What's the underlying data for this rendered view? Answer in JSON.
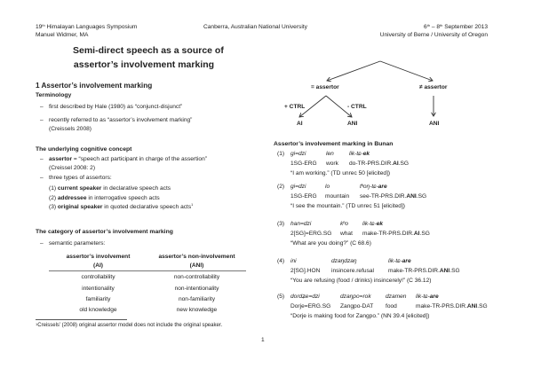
{
  "header": {
    "event_ordinal": "19",
    "event_ordinal_sup": "th",
    "event_name": "Himalayan Languages Symposium",
    "author": "Manuel Widmer, MA",
    "location": "Canberra, Australian National University",
    "date_start": "6",
    "date_start_sup": "th",
    "date_sep": " – ",
    "date_end": "8",
    "date_end_sup": "th",
    "date_rest": " September 2013",
    "affiliation": "University of Berne / University of Oregon"
  },
  "title": {
    "line1": "Semi-direct speech as a source of",
    "line2": "assertor’s involvement marking"
  },
  "section1": {
    "heading": "1 Assertor’s involvement marking",
    "terminology": {
      "heading": "Terminology",
      "b1": "first described by Hale (1980) as “conjunct-disjunct”",
      "b2": "recently referred to as “assertor’s involvement marking”",
      "b2_cont": "(Creissels 2008)"
    },
    "concept": {
      "heading": "The underlying cognitive concept",
      "b1_bold": "assertor",
      "b1_rest": " = “speech act participant in charge of the assertion”",
      "b1_cont": "(Creissel 2008: 2)",
      "b2": "three types of assertors:",
      "types": [
        {
          "num": "(1) ",
          "bold": "current speaker",
          "rest": " in declarative speech acts",
          "sup": ""
        },
        {
          "num": "(2) ",
          "bold": "addressee",
          "rest": " in interrogative speech acts",
          "sup": ""
        },
        {
          "num": "(3) ",
          "bold": "original speaker",
          "rest": " in quoted declarative speech acts",
          "sup": "1"
        }
      ]
    },
    "category": {
      "heading": "The category of assertor’s involvement marking",
      "b1": "semantic parameters:",
      "table": {
        "headers": [
          [
            "assertor’s involvement",
            "(AI)"
          ],
          [
            "assertor’s non-involvement",
            "(ANI)"
          ]
        ],
        "rows": [
          [
            "controllability",
            "non-controllability"
          ],
          [
            "intentionality",
            "non-intentionality"
          ],
          [
            "familiarity",
            "non-familiarity"
          ],
          [
            "old knowledge",
            "new knowledge"
          ]
        ]
      }
    }
  },
  "footnote": {
    "num": "1",
    "text": "Creissels’ (2008) original assertor model does not include the original speaker."
  },
  "page_number": "1",
  "diagram": {
    "eq_assertor": "= assertor",
    "neq_assertor": "≠ assertor",
    "plus_ctrl": "+ CTRL",
    "minus_ctrl": "- CTRL",
    "ai": "AI",
    "ani_left": "ANI",
    "ani_right": "ANI"
  },
  "bunan": {
    "heading": "Assertor’s involvement marking in Bunan",
    "examples": [
      {
        "num": "(1)",
        "words": [
          [
            [
              "gi=dzi",
              0
            ]
          ],
          [
            [
              "len",
              0
            ]
          ],
          [
            [
              "lik-tɕ-",
              0
            ],
            [
              "ek",
              1
            ]
          ]
        ],
        "gloss": [
          [
            [
              "1SG-ERG",
              0
            ]
          ],
          [
            [
              "work",
              0
            ]
          ],
          [
            [
              "do-TR-PRS.DIR.",
              0
            ],
            [
              "AI",
              1
            ],
            [
              ".SG",
              0
            ]
          ]
        ],
        "translation": "“I am working.” (TD unrec 50 [elicited])"
      },
      {
        "num": "(2)",
        "words": [
          [
            [
              "gi=dzi",
              0
            ]
          ],
          [
            [
              "lo",
              0
            ]
          ],
          [
            [
              "tʰoŋ-tɕ-",
              0
            ],
            [
              "are",
              1
            ]
          ]
        ],
        "gloss": [
          [
            [
              "1SG-ERG",
              0
            ]
          ],
          [
            [
              "mountain",
              0
            ]
          ],
          [
            [
              "see-TR-PRS.DIR.",
              0
            ],
            [
              "ANI",
              1
            ],
            [
              ".SG",
              0
            ]
          ]
        ],
        "translation": "“I see the mountain.” (TD unrec 51 [elicited])"
      },
      {
        "num": "(3)",
        "words": [
          [
            [
              "han=dzi",
              0
            ]
          ],
          [
            [
              "kʰo",
              0
            ]
          ],
          [
            [
              "lik-tɕ-",
              0
            ],
            [
              "ek",
              1
            ]
          ]
        ],
        "gloss": [
          [
            [
              "2[SG]=ERG.SG",
              0
            ]
          ],
          [
            [
              "what",
              0
            ]
          ],
          [
            [
              "make-TR-PRS.DIR.",
              0
            ],
            [
              "AI",
              1
            ],
            [
              ".SG",
              0
            ]
          ]
        ],
        "translation": "“What are you doing?” (C 68.6)"
      },
      {
        "num": "(4)",
        "words": [
          [
            [
              "ini",
              0
            ]
          ],
          [
            [
              "dzaŋdzaŋ",
              0
            ]
          ],
          [
            [
              "lik-tɕ-",
              0
            ],
            [
              "are",
              1
            ]
          ]
        ],
        "gloss": [
          [
            [
              "2[SG].HON",
              0
            ]
          ],
          [
            [
              "insincere.refusal",
              0
            ]
          ],
          [
            [
              "make-TR-PRS.DIR.",
              0
            ],
            [
              "ANI",
              1
            ],
            [
              ".SG",
              0
            ]
          ]
        ],
        "translation": "“You are refusing (food / drinks) insincerely!” (C 36.12)"
      },
      {
        "num": "(5)",
        "words": [
          [
            [
              "dordʑe=dzi",
              0
            ]
          ],
          [
            [
              "dzaŋpo=rok",
              0
            ]
          ],
          [
            [
              "dzamen",
              0
            ]
          ],
          [
            [
              "lik-tɕ-",
              0
            ],
            [
              "are",
              1
            ]
          ]
        ],
        "gloss": [
          [
            [
              "Dorje=ERG.SG",
              0
            ]
          ],
          [
            [
              "Zangpo-DAT",
              0
            ]
          ],
          [
            [
              "food",
              0
            ]
          ],
          [
            [
              "make-TR-PRS.DIR.",
              0
            ],
            [
              "ANI",
              1
            ],
            [
              ".SG",
              0
            ]
          ]
        ],
        "translation": "“Dorje is making food for Zangpo.” (NN 39.4 [elicited])"
      }
    ]
  }
}
